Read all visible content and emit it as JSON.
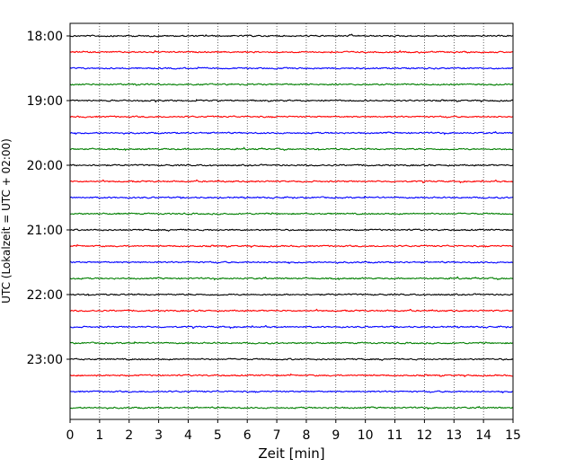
{
  "chart_data": {
    "type": "line",
    "xlabel": "Zeit  [min]",
    "ylabel": "UTC (Lokalzeit = UTC + 02:00)",
    "xlim": [
      0,
      15
    ],
    "x_ticks": [
      "0",
      "1",
      "2",
      "3",
      "4",
      "5",
      "6",
      "7",
      "8",
      "9",
      "10",
      "11",
      "12",
      "13",
      "14",
      "15"
    ],
    "y_ticks": [
      "18:00",
      "19:00",
      "20:00",
      "21:00",
      "22:00",
      "23:00"
    ],
    "grid": "vertical dotted at each minute",
    "start_time": "18:00",
    "trace_interval_min": 15,
    "trace_count": 24,
    "trace_colors": [
      "#000000",
      "#ff0000",
      "#0000ff",
      "#007f00"
    ],
    "series_note": "seismogram traces; each trace covers 15 minutes"
  }
}
